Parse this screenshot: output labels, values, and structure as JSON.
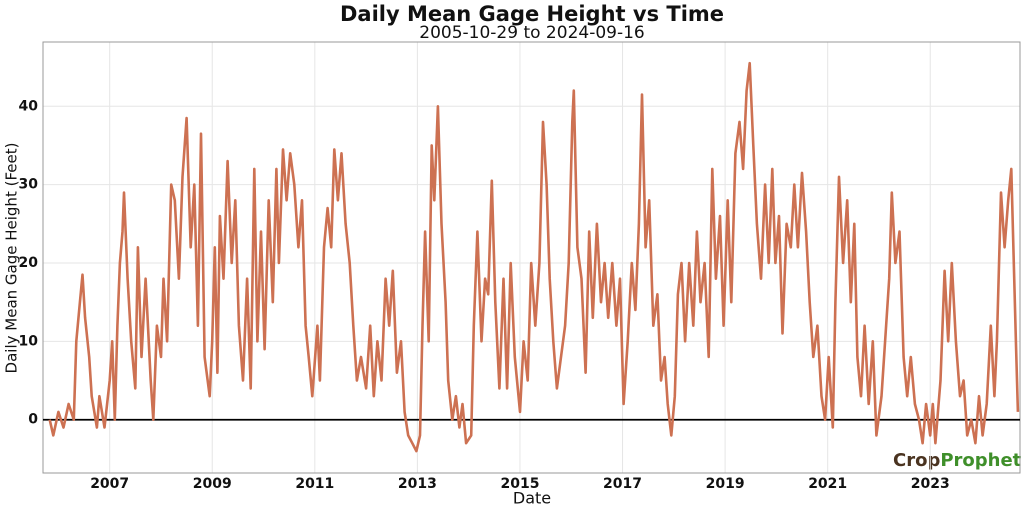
{
  "chart_data": {
    "type": "line",
    "title": "Daily Mean Gage Height vs Time",
    "subtitle": "2005-10-29 to 2024-09-16",
    "x_label": "Date",
    "y_label": "Daily Mean Gage Height (Feet)",
    "logo": {
      "first": "Crop",
      "second": "Prophet"
    },
    "xlim": [
      2005.7,
      2024.75
    ],
    "xticks": [
      2007,
      2009,
      2011,
      2013,
      2015,
      2017,
      2019,
      2021,
      2023
    ],
    "ylim": [
      -6.8,
      48.2
    ],
    "yticks": [
      0,
      10,
      20,
      30,
      40
    ],
    "grid": true,
    "zero_line": true,
    "series": [
      {
        "name": "Daily Mean Gage Height",
        "color": "#cd7152",
        "x": [
          2005.83,
          2005.9,
          2006.0,
          2006.1,
          2006.2,
          2006.3,
          2006.35,
          2006.42,
          2006.47,
          2006.52,
          2006.6,
          2006.65,
          2006.75,
          2006.8,
          2006.9,
          2007.0,
          2007.05,
          2007.1,
          2007.15,
          2007.2,
          2007.25,
          2007.28,
          2007.35,
          2007.42,
          2007.5,
          2007.55,
          2007.62,
          2007.7,
          2007.8,
          2007.85,
          2007.92,
          2008.0,
          2008.05,
          2008.12,
          2008.2,
          2008.27,
          2008.35,
          2008.42,
          2008.5,
          2008.58,
          2008.65,
          2008.72,
          2008.78,
          2008.85,
          2008.95,
          2009.0,
          2009.05,
          2009.1,
          2009.15,
          2009.22,
          2009.3,
          2009.38,
          2009.45,
          2009.52,
          2009.6,
          2009.68,
          2009.75,
          2009.82,
          2009.88,
          2009.95,
          2010.02,
          2010.1,
          2010.18,
          2010.25,
          2010.3,
          2010.38,
          2010.45,
          2010.52,
          2010.6,
          2010.68,
          2010.75,
          2010.82,
          2010.88,
          2010.95,
          2011.05,
          2011.1,
          2011.18,
          2011.25,
          2011.32,
          2011.38,
          2011.45,
          2011.52,
          2011.6,
          2011.68,
          2011.75,
          2011.82,
          2011.9,
          2012.0,
          2012.08,
          2012.15,
          2012.22,
          2012.3,
          2012.38,
          2012.45,
          2012.52,
          2012.6,
          2012.68,
          2012.75,
          2012.82,
          2012.9,
          2012.98,
          2013.05,
          2013.1,
          2013.15,
          2013.22,
          2013.28,
          2013.33,
          2013.4,
          2013.47,
          2013.55,
          2013.6,
          2013.68,
          2013.75,
          2013.82,
          2013.88,
          2013.95,
          2014.05,
          2014.1,
          2014.17,
          2014.25,
          2014.32,
          2014.38,
          2014.45,
          2014.52,
          2014.6,
          2014.68,
          2014.75,
          2014.82,
          2014.9,
          2015.0,
          2015.07,
          2015.15,
          2015.22,
          2015.3,
          2015.38,
          2015.45,
          2015.52,
          2015.58,
          2015.65,
          2015.72,
          2015.8,
          2015.88,
          2015.95,
          2016.02,
          2016.05,
          2016.12,
          2016.2,
          2016.28,
          2016.35,
          2016.42,
          2016.5,
          2016.58,
          2016.65,
          2016.72,
          2016.8,
          2016.88,
          2016.95,
          2017.02,
          2017.1,
          2017.18,
          2017.25,
          2017.32,
          2017.38,
          2017.45,
          2017.52,
          2017.6,
          2017.68,
          2017.75,
          2017.82,
          2017.88,
          2017.95,
          2018.02,
          2018.08,
          2018.15,
          2018.22,
          2018.3,
          2018.38,
          2018.45,
          2018.52,
          2018.6,
          2018.68,
          2018.75,
          2018.82,
          2018.9,
          2018.97,
          2019.05,
          2019.12,
          2019.2,
          2019.28,
          2019.35,
          2019.42,
          2019.48,
          2019.55,
          2019.62,
          2019.7,
          2019.78,
          2019.85,
          2019.92,
          2019.98,
          2020.05,
          2020.12,
          2020.2,
          2020.28,
          2020.35,
          2020.42,
          2020.5,
          2020.58,
          2020.65,
          2020.72,
          2020.8,
          2020.88,
          2020.95,
          2021.02,
          2021.1,
          2021.15,
          2021.22,
          2021.3,
          2021.38,
          2021.45,
          2021.52,
          2021.58,
          2021.65,
          2021.72,
          2021.8,
          2021.88,
          2021.95,
          2022.05,
          2022.12,
          2022.2,
          2022.25,
          2022.32,
          2022.4,
          2022.48,
          2022.55,
          2022.62,
          2022.7,
          2022.78,
          2022.85,
          2022.92,
          2023.0,
          2023.05,
          2023.1,
          2023.2,
          2023.28,
          2023.35,
          2023.42,
          2023.5,
          2023.58,
          2023.65,
          2023.72,
          2023.8,
          2023.88,
          2023.95,
          2024.02,
          2024.1,
          2024.18,
          2024.25,
          2024.3,
          2024.38,
          2024.45,
          2024.52,
          2024.58,
          2024.63,
          2024.67,
          2024.71
        ],
        "values": [
          0,
          -2,
          1,
          -1,
          2,
          0,
          10,
          15,
          18.5,
          13,
          8,
          3,
          -1,
          3,
          -1,
          5,
          10,
          0,
          12,
          20,
          24,
          29,
          18,
          10,
          4,
          22,
          8,
          18,
          5,
          0,
          12,
          8,
          18,
          10,
          30,
          28,
          18,
          31,
          38.5,
          22,
          30,
          12,
          36.5,
          8,
          3,
          10,
          22,
          6,
          26,
          18,
          33,
          20,
          28,
          12,
          5,
          18,
          4,
          32,
          10,
          24,
          9,
          28,
          15,
          32,
          20,
          34.5,
          28,
          34,
          30,
          22,
          28,
          12,
          8,
          3,
          12,
          5,
          22,
          27,
          22,
          34.5,
          28,
          34,
          25,
          20,
          12,
          5,
          8,
          4,
          12,
          3,
          10,
          5,
          18,
          12,
          19,
          6,
          10,
          1,
          -2,
          -3,
          -4,
          -2,
          12,
          24,
          10,
          35,
          28,
          40,
          25,
          15,
          5,
          0,
          3,
          -1,
          2,
          -3,
          -2,
          12,
          24,
          10,
          18,
          16,
          30.5,
          15,
          4,
          18,
          4,
          20,
          8,
          1,
          10,
          5,
          20,
          12,
          20,
          38,
          30,
          18,
          10,
          4,
          8,
          12,
          20,
          38,
          42,
          22,
          18,
          6,
          24,
          13,
          25,
          15,
          20,
          13,
          20,
          12,
          18,
          2,
          10,
          20,
          14,
          25,
          41.5,
          22,
          28,
          12,
          16,
          5,
          8,
          2,
          -2,
          3,
          16,
          20,
          10,
          20,
          12,
          24,
          15,
          20,
          8,
          32,
          18,
          26,
          12,
          28,
          15,
          34,
          38,
          32,
          42,
          45.5,
          35,
          25,
          18,
          30,
          20,
          32,
          20,
          26,
          11,
          25,
          22,
          30,
          22,
          31.5,
          24,
          15,
          8,
          12,
          3,
          0,
          8,
          -1,
          15,
          31,
          20,
          28,
          15,
          25,
          8,
          3,
          12,
          2,
          10,
          -2,
          3,
          10,
          18,
          29,
          20,
          24,
          8,
          3,
          8,
          2,
          0,
          -3,
          2,
          -2,
          2,
          -3,
          5,
          19,
          10,
          20,
          10,
          3,
          5,
          -2,
          0,
          -3,
          3,
          -2,
          2,
          12,
          3,
          10,
          29,
          22,
          28,
          32,
          20,
          10,
          1
        ]
      }
    ]
  }
}
